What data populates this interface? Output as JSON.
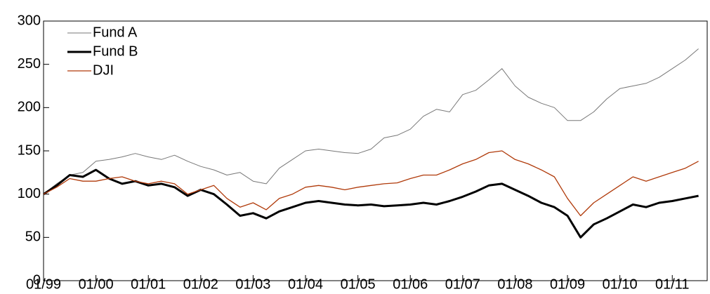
{
  "chart_data": {
    "type": "line",
    "x": [
      "01/99",
      "04/99",
      "07/99",
      "10/99",
      "01/00",
      "04/00",
      "07/00",
      "10/00",
      "01/01",
      "04/01",
      "07/01",
      "10/01",
      "01/02",
      "04/02",
      "07/02",
      "10/02",
      "01/03",
      "04/03",
      "07/03",
      "10/03",
      "01/04",
      "04/04",
      "07/04",
      "10/04",
      "01/05",
      "04/05",
      "07/05",
      "10/05",
      "01/06",
      "04/06",
      "07/06",
      "10/06",
      "01/07",
      "04/07",
      "07/07",
      "10/07",
      "01/08",
      "04/08",
      "07/08",
      "10/08",
      "01/09",
      "04/09",
      "07/09",
      "10/09",
      "01/10",
      "04/10",
      "07/10",
      "10/10",
      "01/11",
      "04/11",
      "07/11"
    ],
    "series": [
      {
        "name": "Fund A",
        "color": "#777777",
        "values": [
          100,
          112,
          122,
          125,
          138,
          140,
          143,
          147,
          143,
          140,
          145,
          138,
          132,
          128,
          122,
          125,
          115,
          112,
          130,
          140,
          150,
          152,
          150,
          148,
          147,
          152,
          165,
          168,
          175,
          190,
          198,
          195,
          215,
          220,
          232,
          245,
          225,
          212,
          205,
          200,
          185,
          185,
          195,
          210,
          222,
          225,
          228,
          235,
          245,
          255,
          268
        ]
      },
      {
        "name": "Fund B",
        "color": "#000000",
        "values": [
          100,
          110,
          122,
          120,
          128,
          118,
          112,
          115,
          110,
          112,
          108,
          98,
          105,
          100,
          88,
          75,
          78,
          72,
          80,
          85,
          90,
          92,
          90,
          88,
          87,
          88,
          86,
          87,
          88,
          90,
          88,
          92,
          97,
          103,
          110,
          112,
          105,
          98,
          90,
          85,
          75,
          50,
          65,
          72,
          80,
          88,
          85,
          90,
          92,
          95,
          98
        ]
      },
      {
        "name": "DJI",
        "color": "#b03a0a",
        "values": [
          100,
          108,
          118,
          115,
          115,
          118,
          120,
          115,
          112,
          115,
          112,
          100,
          105,
          110,
          95,
          85,
          90,
          82,
          95,
          100,
          108,
          110,
          108,
          105,
          108,
          110,
          112,
          113,
          118,
          122,
          122,
          128,
          135,
          140,
          148,
          150,
          140,
          135,
          128,
          120,
          95,
          75,
          90,
          100,
          110,
          120,
          115,
          120,
          125,
          130,
          138
        ]
      }
    ],
    "xlim": [
      "01/99",
      "09/11"
    ],
    "xticks": [
      "01/99",
      "01/00",
      "01/01",
      "01/02",
      "01/03",
      "01/04",
      "01/05",
      "01/06",
      "01/07",
      "01/08",
      "01/09",
      "01/10",
      "01/11"
    ],
    "ylim": [
      0,
      300
    ],
    "yticks": [
      0,
      50,
      100,
      150,
      200,
      250,
      300
    ],
    "legend": "upper-left"
  }
}
